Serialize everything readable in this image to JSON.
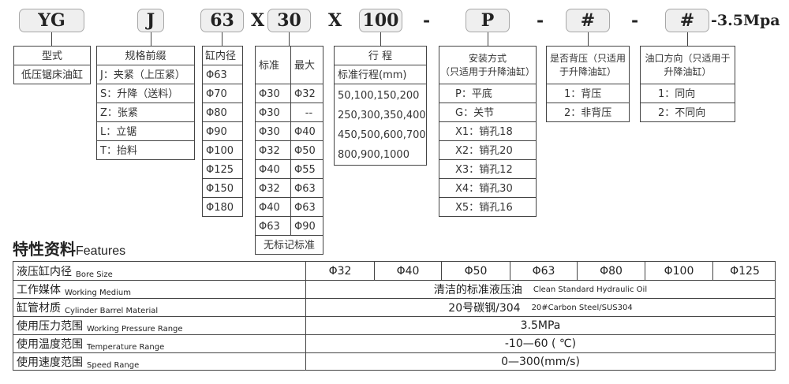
{
  "model_code": {
    "segments": [
      "YG",
      "J",
      "63",
      "30",
      "100",
      "P",
      "#",
      "#"
    ],
    "separators": [
      "X",
      "X",
      "-",
      "-",
      "-"
    ],
    "suffix": "-3.5Mpa"
  },
  "tables": [
    {
      "id": "type",
      "header": [
        "型式"
      ],
      "rows": [
        [
          "低压锯床油缸"
        ]
      ]
    },
    {
      "id": "prefix",
      "header": [
        "规格前缀"
      ],
      "rows": [
        [
          "J：夹紧（上压紧）"
        ],
        [
          "S：升降（送料）"
        ],
        [
          "Z：张紧"
        ],
        [
          "L：立锯"
        ],
        [
          "T：抬料"
        ]
      ]
    },
    {
      "id": "bore",
      "header": [
        "缸内径"
      ],
      "rows": [
        [
          "Φ63"
        ],
        [
          "Φ70"
        ],
        [
          "Φ80"
        ],
        [
          "Φ90"
        ],
        [
          "Φ100"
        ],
        [
          "Φ125"
        ],
        [
          "Φ150"
        ],
        [
          "Φ180"
        ]
      ]
    },
    {
      "id": "rod",
      "header": [
        "标准",
        "最大"
      ],
      "rows": [
        [
          "Φ30",
          "Φ32"
        ],
        [
          "Φ30",
          "--"
        ],
        [
          "Φ30",
          "Φ40"
        ],
        [
          "Φ32",
          "Φ50"
        ],
        [
          "Φ40",
          "Φ55"
        ],
        [
          "Φ32",
          "Φ63"
        ],
        [
          "Φ40",
          "Φ63"
        ],
        [
          "Φ63",
          "Φ90"
        ]
      ],
      "footer": "无标记标准"
    },
    {
      "id": "stroke",
      "header": [
        "行 程"
      ],
      "subheader": "标准行程(mm)",
      "lines": [
        "50,100,150,200",
        "250,300,350,400",
        "450,500,600,700",
        "800,900,1000"
      ]
    },
    {
      "id": "mount",
      "header": [
        "安装方式",
        "（只适用于升降油缸）"
      ],
      "rows": [
        [
          "P：平底"
        ],
        [
          "G：关节"
        ],
        [
          "X1：销孔18"
        ],
        [
          "X2：销孔20"
        ],
        [
          "X3：销孔12"
        ],
        [
          "X4：销孔30"
        ],
        [
          "X5：销孔16"
        ]
      ]
    },
    {
      "id": "backpressure",
      "header": [
        "是否背压（只适用",
        "于升降油缸）"
      ],
      "rows": [
        [
          "1：背压"
        ],
        [
          "2：非背压"
        ]
      ]
    },
    {
      "id": "port",
      "header": [
        "油口方向（只适用于",
        "升降油缸）"
      ],
      "rows": [
        [
          "1：同向"
        ],
        [
          "2：不同向"
        ]
      ]
    }
  ],
  "features": {
    "title": "特性资料",
    "title_en": "Features",
    "bore": {
      "label": "液压缸内径",
      "label_en": "Bore Size",
      "values": [
        "Φ32",
        "Φ40",
        "Φ50",
        "Φ63",
        "Φ80",
        "Φ100",
        "Φ125"
      ]
    },
    "rows": [
      {
        "label": "工作媒体",
        "label_en": "Working Medium",
        "value": "清洁的标准液压油",
        "value_en": "Clean Standard Hydraulic Oil"
      },
      {
        "label": "缸管材质",
        "label_en": "Cylinder Barrel Material",
        "value": "20号碳钢/304",
        "value_en": "20#Carbon Steel/SUS304"
      },
      {
        "label": "使用压力范围",
        "label_en": "Working Pressure Range",
        "value": "3.5MPa",
        "value_en": ""
      },
      {
        "label": "使用温度范围",
        "label_en": "Temperature Range",
        "value": "-10—60 ( ℃)",
        "value_en": ""
      },
      {
        "label": "使用速度范围",
        "label_en": "Speed Range",
        "value": "0—300(mm/s)",
        "value_en": ""
      }
    ]
  }
}
